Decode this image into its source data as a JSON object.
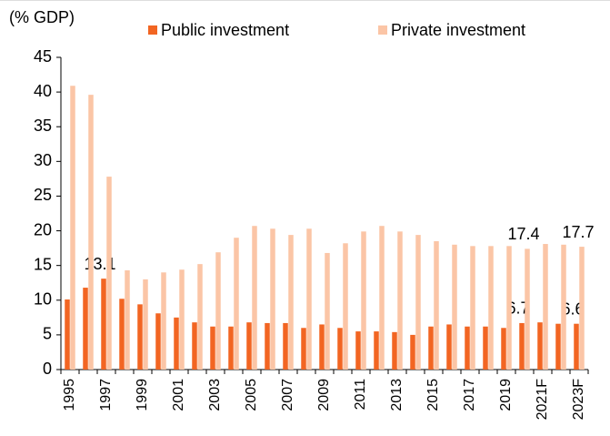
{
  "chart_data": {
    "type": "bar",
    "ylabel": "(% GDP)",
    "categories": [
      "1995",
      null,
      "1997",
      null,
      "1999",
      null,
      "2001",
      null,
      "2003",
      null,
      "2005",
      null,
      "2007",
      null,
      "2009",
      null,
      "2011",
      null,
      "2013",
      null,
      "2015",
      null,
      "2017",
      null,
      "2019",
      null,
      "2021F",
      null,
      "2023F"
    ],
    "series": [
      {
        "name": "Public investment",
        "color": "#f26522",
        "values": [
          10.1,
          11.8,
          13.1,
          10.2,
          9.4,
          8.1,
          7.5,
          6.8,
          6.2,
          6.2,
          6.8,
          6.7,
          6.7,
          6.0,
          6.5,
          6.0,
          5.5,
          5.5,
          5.4,
          5.0,
          6.2,
          6.5,
          6.2,
          6.2,
          6.0,
          6.7,
          6.8,
          6.6,
          6.6
        ],
        "value_labels": [
          null,
          null,
          "13.1",
          null,
          null,
          null,
          null,
          null,
          null,
          null,
          null,
          null,
          null,
          null,
          null,
          null,
          null,
          null,
          null,
          null,
          null,
          null,
          null,
          null,
          null,
          "6.7",
          null,
          null,
          "6.6"
        ]
      },
      {
        "name": "Private investment",
        "color": "#fbc5a6",
        "values": [
          40.9,
          39.6,
          27.8,
          14.3,
          13.0,
          14.0,
          14.4,
          15.2,
          16.9,
          19.0,
          20.7,
          20.3,
          19.4,
          20.3,
          16.8,
          18.2,
          19.9,
          20.7,
          19.9,
          19.4,
          18.5,
          18.0,
          17.8,
          17.8,
          17.8,
          17.4,
          18.1,
          18.0,
          17.7
        ],
        "value_labels": [
          null,
          null,
          null,
          null,
          null,
          null,
          null,
          null,
          null,
          null,
          null,
          null,
          null,
          null,
          null,
          null,
          null,
          null,
          null,
          null,
          null,
          null,
          null,
          null,
          null,
          "17.4",
          null,
          null,
          "17.7"
        ]
      }
    ],
    "ylim": [
      0,
      45
    ],
    "yticks": [
      0,
      5,
      10,
      15,
      20,
      25,
      30,
      35,
      40,
      45
    ],
    "grid": false,
    "legend": "top"
  }
}
